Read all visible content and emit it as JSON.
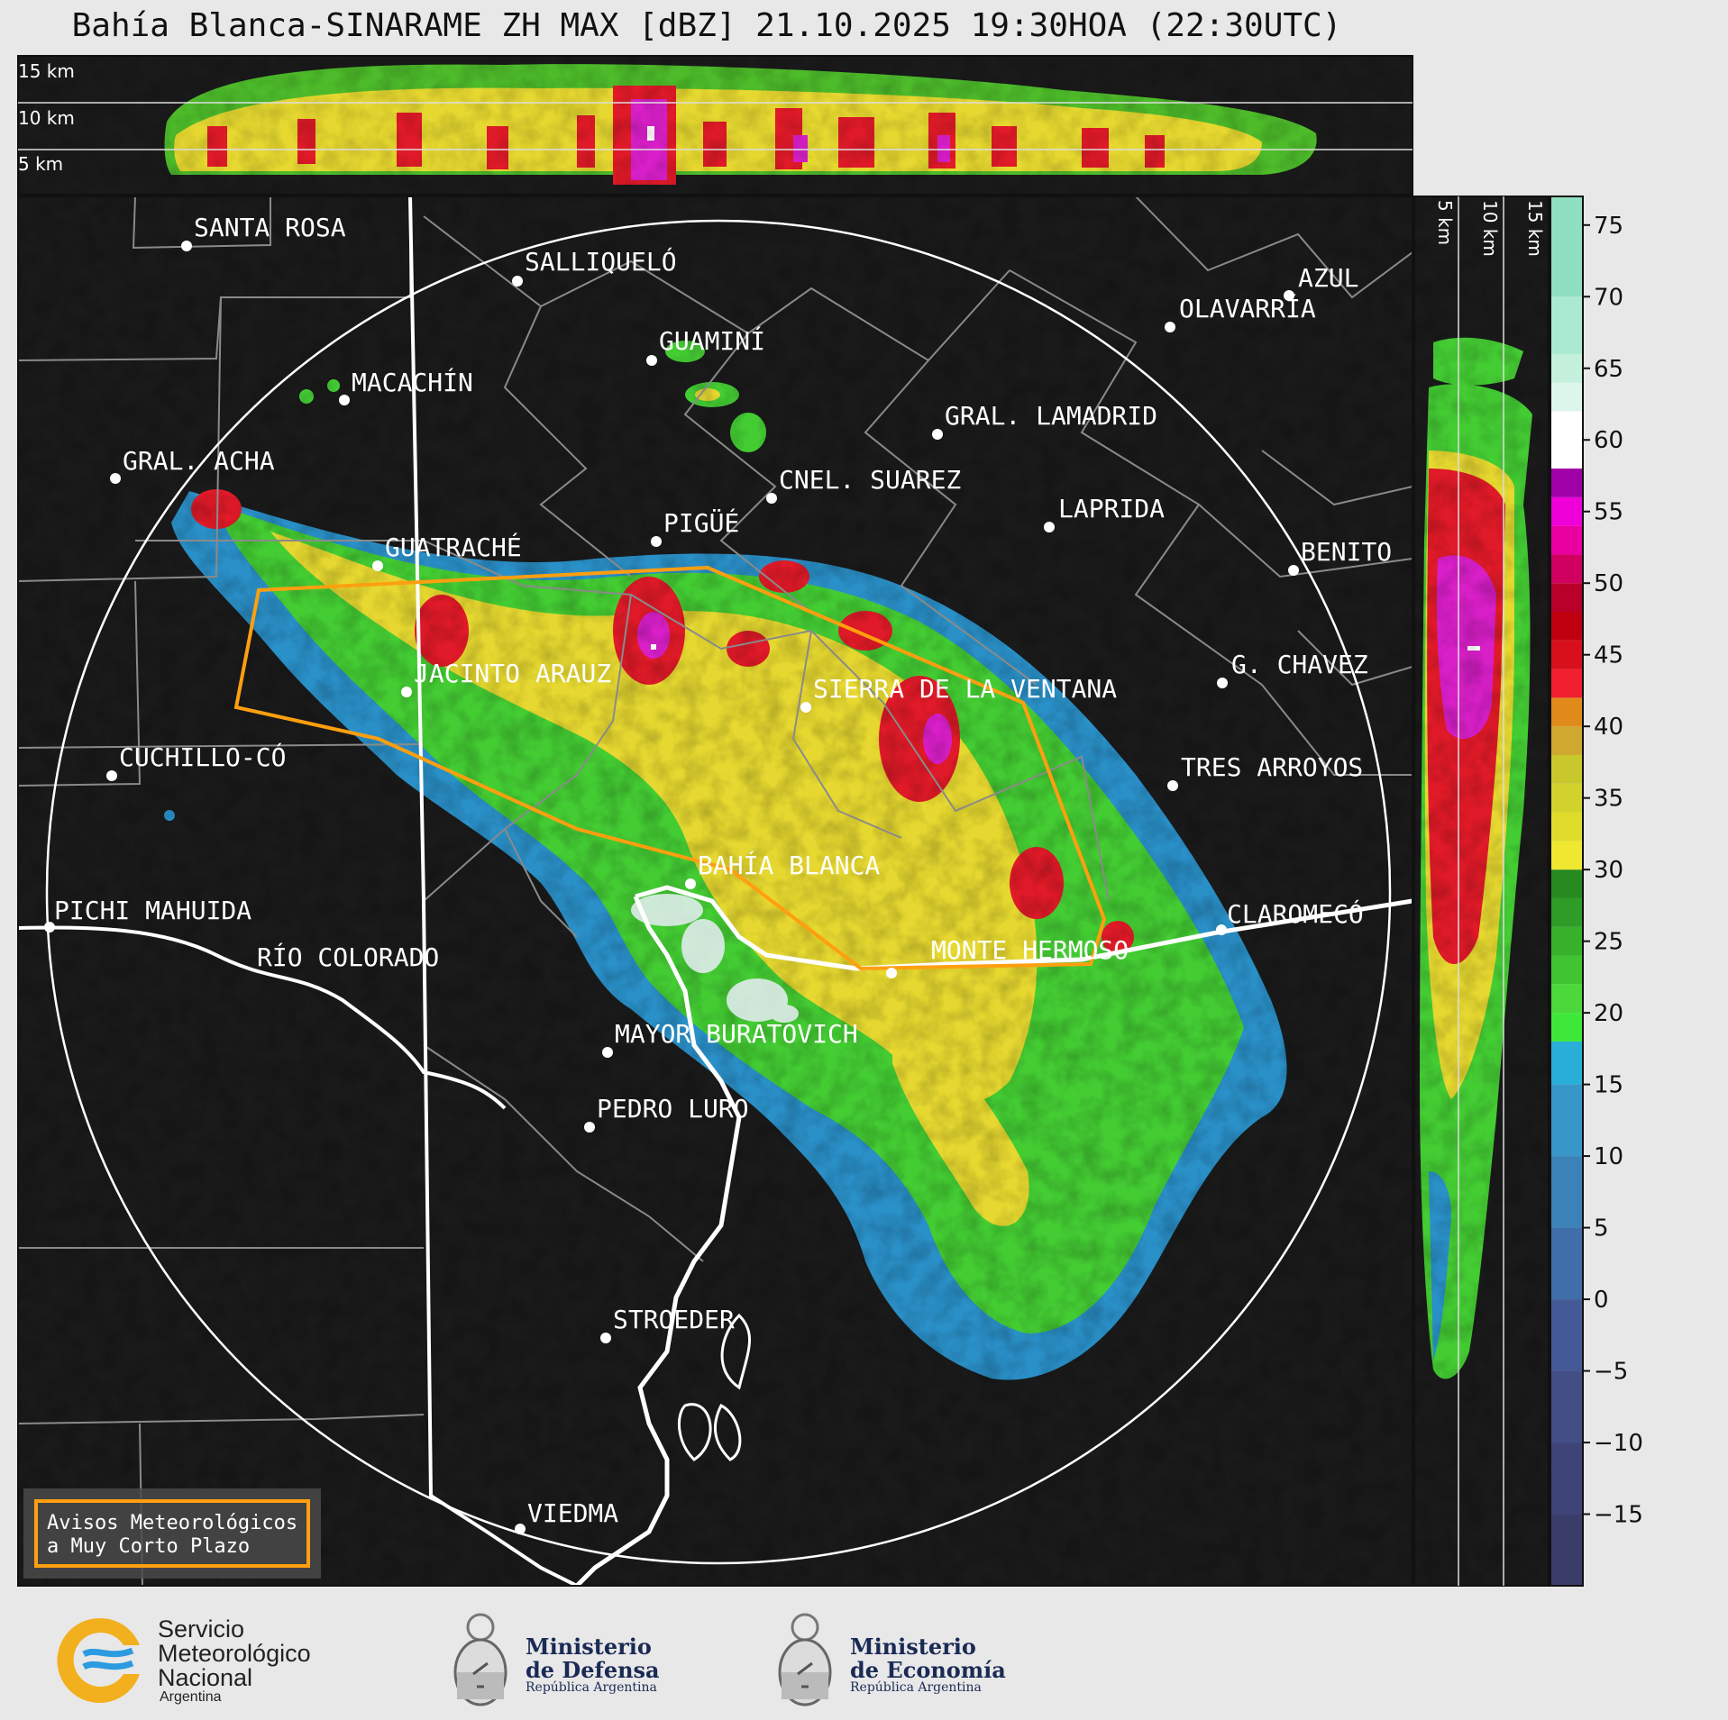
{
  "title": "Bahía Blanca-SINARAME ZH MAX [dBZ] 21.10.2025 19:30HOA (22:30UTC)",
  "top_panel_heights": [
    "15 km",
    "10 km",
    "5 km"
  ],
  "side_panel_heights": [
    "5 km",
    "10 km",
    "15 km"
  ],
  "colorbar": {
    "ticks": [
      "75",
      "70",
      "65",
      "60",
      "55",
      "50",
      "45",
      "40",
      "35",
      "30",
      "25",
      "20",
      "15",
      "10",
      "5",
      "0",
      "−5",
      "−10",
      "−15"
    ],
    "range": [
      -20,
      77
    ]
  },
  "cities": [
    {
      "name": "SANTA ROSA"
    },
    {
      "name": "SALLIQUELÓ"
    },
    {
      "name": "GUAMINÍ"
    },
    {
      "name": "AZUL"
    },
    {
      "name": "OLAVARRÍA"
    },
    {
      "name": "MACACHÍN"
    },
    {
      "name": "GRAL. LAMADRID"
    },
    {
      "name": "GRAL. ACHA"
    },
    {
      "name": "CNEL. SUAREZ"
    },
    {
      "name": "LAPRIDA"
    },
    {
      "name": "GUATRACHÉ"
    },
    {
      "name": "PIGÜÉ"
    },
    {
      "name": "BENITO"
    },
    {
      "name": "JACINTO ARAUZ"
    },
    {
      "name": "SIERRA DE LA VENTANA"
    },
    {
      "name": "G. CHAVEZ"
    },
    {
      "name": "CUCHILLO-CÓ"
    },
    {
      "name": "TRES ARROYOS"
    },
    {
      "name": "BAHÍA BLANCA"
    },
    {
      "name": "PICHI MAHUIDA"
    },
    {
      "name": "CLAROMECÓ"
    },
    {
      "name": "RÍO COLORADO"
    },
    {
      "name": "MONTE HERMOSO"
    },
    {
      "name": "MAYOR BURATOVICH"
    },
    {
      "name": "PEDRO LURO"
    },
    {
      "name": "STROEDER"
    },
    {
      "name": "VIEDMA"
    }
  ],
  "legend_box": {
    "line1": "Avisos Meteorológicos",
    "line2": "a Muy Corto Plazo"
  },
  "logos": {
    "smn": {
      "line1": "Servicio",
      "line2": "Meteorológico",
      "line3": "Nacional",
      "line4": "Argentina"
    },
    "defensa": {
      "line1": "Ministerio",
      "line2": "de Defensa",
      "line3": "República Argentina"
    },
    "economia": {
      "line1": "Ministerio",
      "line2": "de Economía",
      "line3": "República Argentina"
    }
  },
  "colors": {
    "background": "#1a1a1a",
    "warning_polygon": "#ff9f10",
    "page": "#e8e8e8"
  }
}
